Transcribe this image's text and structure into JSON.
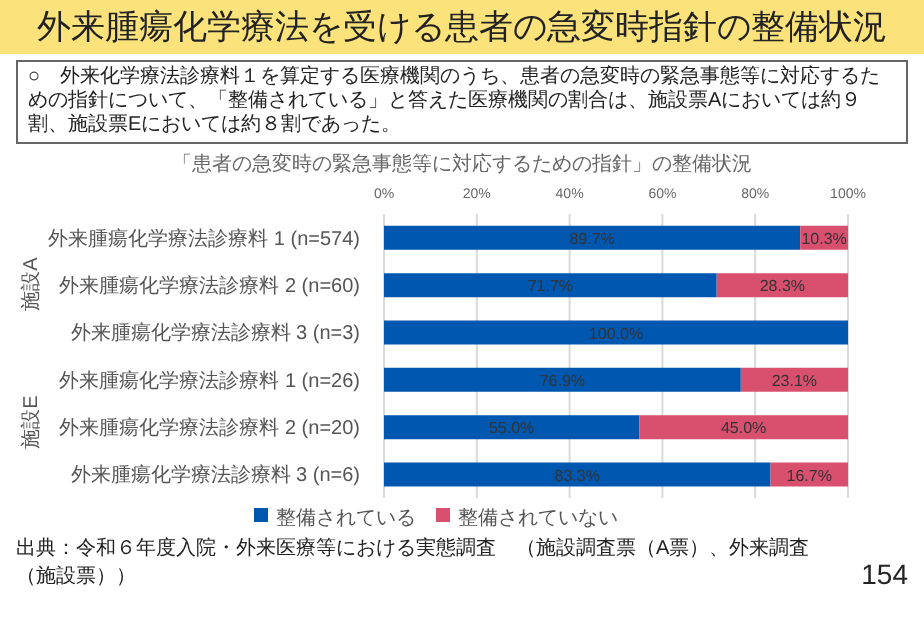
{
  "chart_data": {
    "type": "bar",
    "orientation": "horizontal",
    "stacked": true,
    "title": "外来腫瘍化学療法を受ける患者の急変時指針の整備状況",
    "subtitle": "「患者の急変時の緊急事態等に対応するための指針」の整備状況",
    "annotations": [
      "○　外来化学療法診療料１を算定する医療機関のうち、患者の急変時の緊急事態等に対応するための指針について、「整備されている」と答えた医療機関の割合は、施設票Aにおいては約９割、施設票Eにおいては約８割であった。",
      "施設A",
      "施設E",
      "出典：令和６年度入院・外来医療等における実態調査　（施設調査票（A票）、外来調査（施設票））",
      "154"
    ],
    "categories": [
      "外来腫瘍化学療法診療料 1 (n=574)",
      "外来腫瘍化学療法診療料 2 (n=60)",
      "外来腫瘍化学療法診療料 3 (n=3)",
      "外来腫瘍化学療法診療料 1 (n=26)",
      "外来腫瘍化学療法診療料 2 (n=20)",
      "外来腫瘍化学療法診療料 3 (n=6)"
    ],
    "series": [
      {
        "name": "整備されている",
        "color": "#0057b0",
        "values": [
          89.7,
          71.7,
          100,
          76.9,
          55.0,
          83.3
        ],
        "value_labels": [
          "89.7%",
          "71.7%",
          "100.0%",
          "76.9%",
          "55.0%",
          "83.3%"
        ]
      },
      {
        "name": "整備されていない",
        "color": "#d9506e",
        "values": [
          10.3,
          28.3,
          0,
          23.1,
          45.0,
          16.7
        ],
        "value_labels": [
          "10.3%",
          "28.3%",
          null,
          "23.1%",
          "45.0%",
          "16.7%"
        ]
      }
    ],
    "xlim": [
      0,
      100
    ],
    "xticks": [
      {
        "value": 0,
        "label": "0%"
      },
      {
        "value": 20,
        "label": "20%"
      },
      {
        "value": 40,
        "label": "40%"
      },
      {
        "value": 60,
        "label": "60%"
      },
      {
        "value": 80,
        "label": "80%"
      },
      {
        "value": 100,
        "label": "100%"
      }
    ],
    "grid": "x",
    "legend": "bottom"
  }
}
